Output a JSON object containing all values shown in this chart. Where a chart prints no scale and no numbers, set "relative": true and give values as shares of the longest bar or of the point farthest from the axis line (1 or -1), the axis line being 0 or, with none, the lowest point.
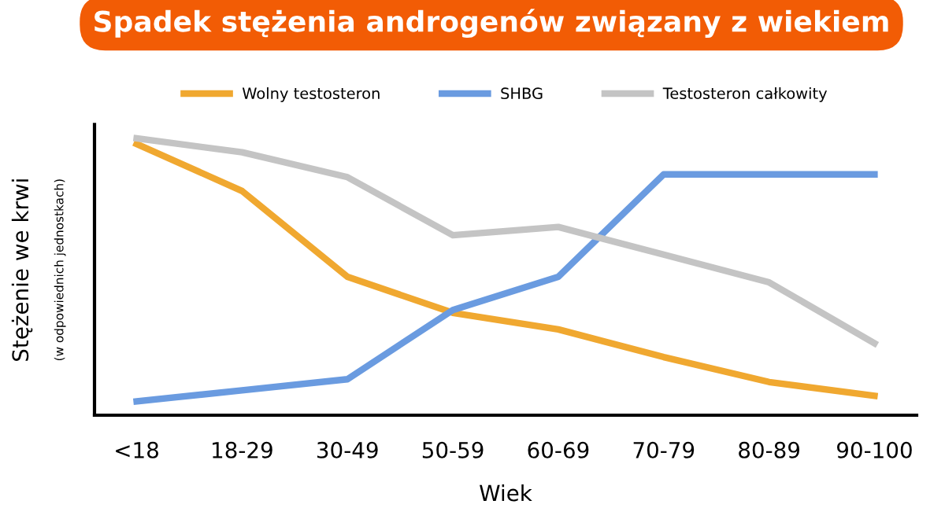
{
  "chart_data": {
    "type": "line",
    "title": "Spadek stężenia androgenów związany z wiekiem",
    "xlabel": "Wiek",
    "ylabel": "Stężenie we krwi",
    "annotations": [
      "(w odpowiednich jednostkach)"
    ],
    "categories": [
      "<18",
      "18-29",
      "30-49",
      "50-59",
      "60-69",
      "70-79",
      "80-89",
      "90-100"
    ],
    "relative": true,
    "legend": "top",
    "grid": false,
    "marker": "none",
    "line_style": "solid",
    "series": [
      {
        "name": "Wolny testosteron",
        "color": "#f0a830",
        "values": [
          0.98,
          0.81,
          0.5,
          0.37,
          0.31,
          0.21,
          0.12,
          0.07
        ]
      },
      {
        "name": "SHBG",
        "color": "#6a9be0",
        "values": [
          0.05,
          0.09,
          0.13,
          0.38,
          0.5,
          0.87,
          0.87,
          0.87
        ]
      },
      {
        "name": "Testosteron całkowity",
        "color": "#c4c4c4",
        "values": [
          1.0,
          0.95,
          0.86,
          0.65,
          0.68,
          0.58,
          0.48,
          0.26
        ]
      }
    ]
  }
}
